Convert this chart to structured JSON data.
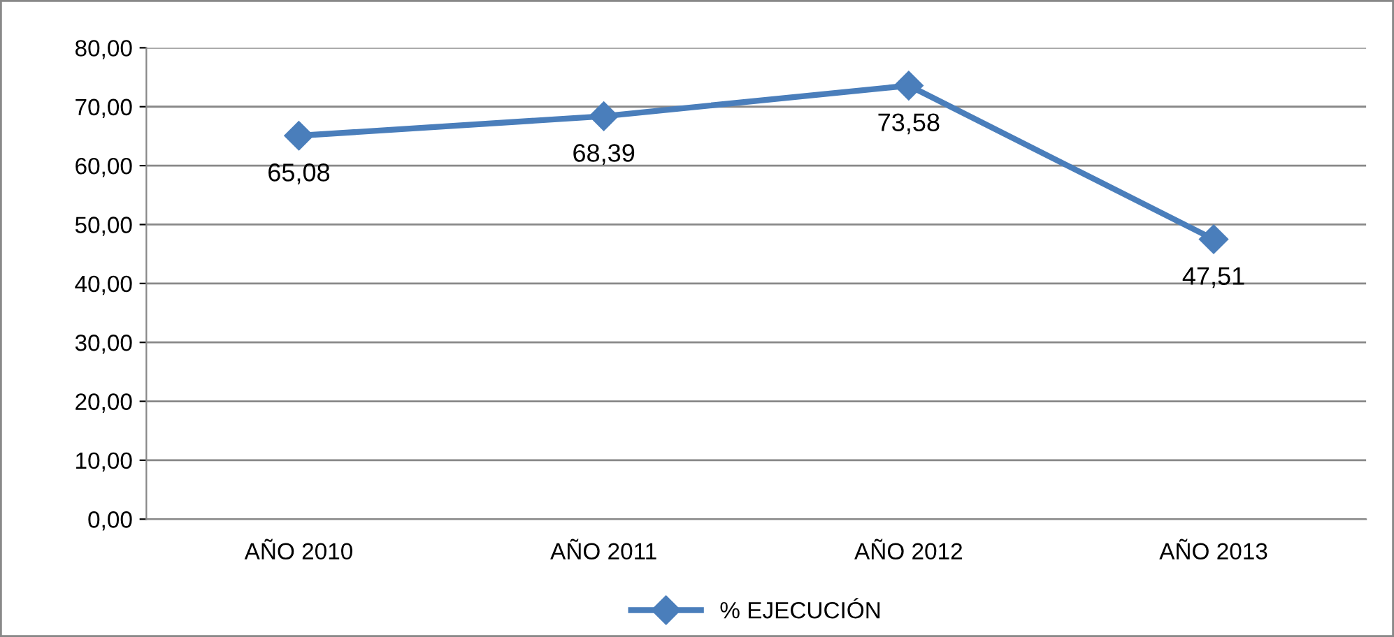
{
  "chart_data": {
    "type": "line",
    "categories": [
      "AÑO 2010",
      "AÑO 2011",
      "AÑO 2012",
      "AÑO 2013"
    ],
    "series": [
      {
        "name": "% EJECUCIÓN",
        "color": "#4a7ebb",
        "values": [
          65.08,
          68.39,
          73.58,
          47.51
        ],
        "value_labels": [
          "65,08",
          "68,39",
          "73,58",
          "47,51"
        ]
      }
    ],
    "ylim": [
      0,
      80
    ],
    "yticks": [
      {
        "value": 0,
        "label": "0,00"
      },
      {
        "value": 10,
        "label": "10,00"
      },
      {
        "value": 20,
        "label": "20,00"
      },
      {
        "value": 30,
        "label": "30,00"
      },
      {
        "value": 40,
        "label": "40,00"
      },
      {
        "value": 50,
        "label": "50,00"
      },
      {
        "value": 60,
        "label": "60,00"
      },
      {
        "value": 70,
        "label": "70,00"
      },
      {
        "value": 80,
        "label": "80,00"
      }
    ],
    "grid": "y",
    "legend": "bottom",
    "marker": "diamond",
    "line_style": "solid"
  }
}
